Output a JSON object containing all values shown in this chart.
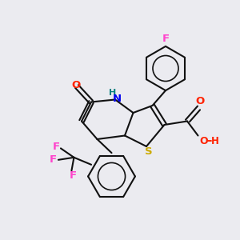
{
  "background_color": "#ebebf0",
  "figsize": [
    3.0,
    3.0
  ],
  "dpi": 100,
  "atom_colors": {
    "F": "#ff44cc",
    "N": "#0000ee",
    "O": "#ff2200",
    "S": "#ccaa00",
    "NH_color": "#008080",
    "OH_color": "#ff2200",
    "C": "#000000"
  },
  "bond_color": "#111111",
  "bond_width": 1.5
}
